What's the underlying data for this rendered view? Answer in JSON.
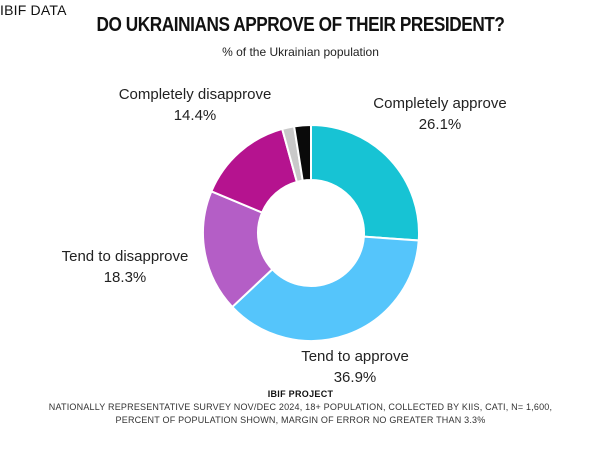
{
  "header": {
    "corner_label": "IBIF DATA",
    "title": "DO UKRAINIANS APPROVE OF THEIR PRESIDENT?",
    "subtitle": "% of the Ukrainian population"
  },
  "chart_data": {
    "type": "pie",
    "title": "DO UKRAINIANS APPROVE OF THEIR PRESIDENT?",
    "subtitle": "% of the Ukrainian population",
    "donut": true,
    "slices": [
      {
        "name": "Completely approve",
        "value": 26.1,
        "label_value": "26.1%",
        "color": "#17c3d4",
        "labeled": true
      },
      {
        "name": "Tend to approve",
        "value": 36.9,
        "label_value": "36.9%",
        "color": "#55c5fb",
        "labeled": true
      },
      {
        "name": "Tend to disapprove",
        "value": 18.3,
        "label_value": "18.3%",
        "color": "#b45ec6",
        "labeled": true
      },
      {
        "name": "Completely disapprove",
        "value": 14.4,
        "label_value": "14.4%",
        "color": "#b5138f",
        "labeled": true
      },
      {
        "name": "",
        "value": 1.8,
        "label_value": "",
        "color": "#c9c9c9",
        "labeled": false
      },
      {
        "name": "",
        "value": 2.5,
        "label_value": "",
        "color": "#0a0a0a",
        "labeled": false
      }
    ]
  },
  "footer": {
    "heading": "IBIF PROJECT",
    "line1": "NATIONALLY REPRESENTATIVE SURVEY NOV/DEC 2024, 18+ POPULATION, COLLECTED BY KIIS, CATI, N= 1,600,",
    "line2": "PERCENT OF POPULATION SHOWN, MARGIN OF ERROR NO GREATER THAN 3.3%"
  }
}
